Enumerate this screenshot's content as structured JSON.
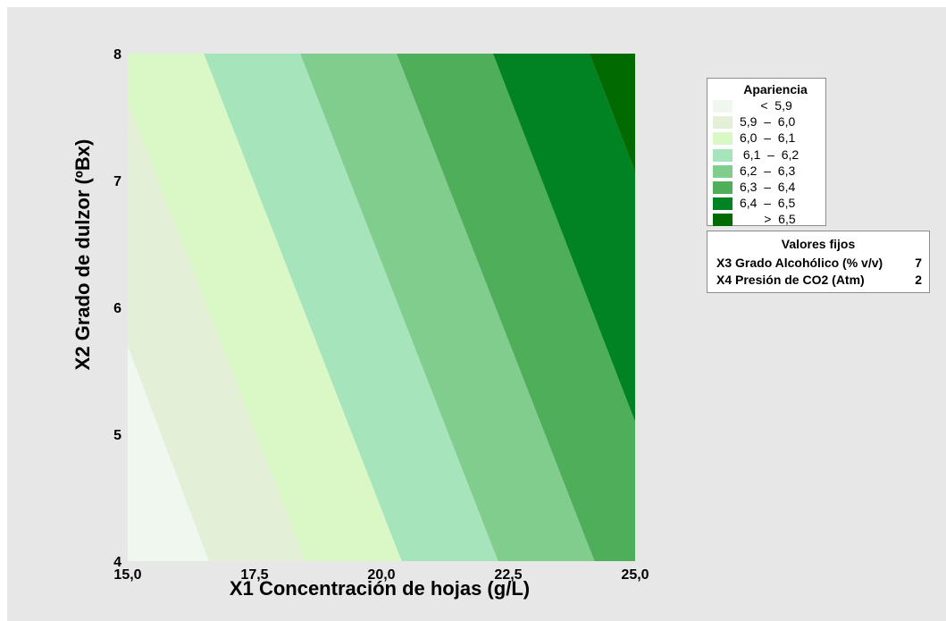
{
  "chart_data": {
    "type": "contour",
    "xlabel": "X1 Concentración de hojas (g/L)",
    "ylabel": "X2 Grado de dulzor (ºBx)",
    "xlim": [
      15.0,
      25.0
    ],
    "ylim": [
      4,
      8
    ],
    "x_ticks": [
      "15,0",
      "17,5",
      "20,0",
      "22,5",
      "25,0"
    ],
    "y_ticks": [
      "4",
      "5",
      "6",
      "7",
      "8"
    ],
    "contour_lines": [
      {
        "level": 5.9,
        "points": [
          [
            15.0,
            5.7
          ],
          [
            16.6,
            4.0
          ]
        ]
      },
      {
        "level": 6.0,
        "points": [
          [
            15.0,
            7.62
          ],
          [
            18.5,
            4.0
          ]
        ]
      },
      {
        "level": 6.1,
        "points": [
          [
            16.5,
            8.0
          ],
          [
            20.4,
            4.0
          ]
        ]
      },
      {
        "level": 6.2,
        "points": [
          [
            18.4,
            8.0
          ],
          [
            22.3,
            4.0
          ]
        ]
      },
      {
        "level": 6.3,
        "points": [
          [
            20.3,
            8.0
          ],
          [
            24.2,
            4.0
          ]
        ]
      },
      {
        "level": 6.4,
        "points": [
          [
            22.2,
            8.0
          ],
          [
            25.0,
            5.1
          ]
        ]
      },
      {
        "level": 6.5,
        "points": [
          [
            24.1,
            8.0
          ],
          [
            25.0,
            7.07
          ]
        ]
      }
    ],
    "legend": {
      "title": "Apariencia",
      "placement": "right",
      "entries": [
        {
          "label": "      <  5,9",
          "color": "#f0f7ee"
        },
        {
          "label": "5,9  –  6,0",
          "color": "#e3efd7"
        },
        {
          "label": "6,0  –  6,1",
          "color": "#daf8c5"
        },
        {
          "label": " 6,1  –  6,2",
          "color": "#a6e5bc"
        },
        {
          "label": "6,2  –  6,3",
          "color": "#80cd8e"
        },
        {
          "label": "6,3  –  6,4",
          "color": "#4fae5a"
        },
        {
          "label": "6,4  –  6,5",
          "color": "#018323"
        },
        {
          "label": "       >  6,5",
          "color": "#016a01"
        }
      ]
    },
    "fixed_values": {
      "title": "Valores fijos",
      "rows": [
        {
          "name": "X3 Grado Alcohólico (% v/v)",
          "value": "7"
        },
        {
          "name": "X4 Presión de CO2  (Atm)",
          "value": "2"
        }
      ]
    }
  }
}
